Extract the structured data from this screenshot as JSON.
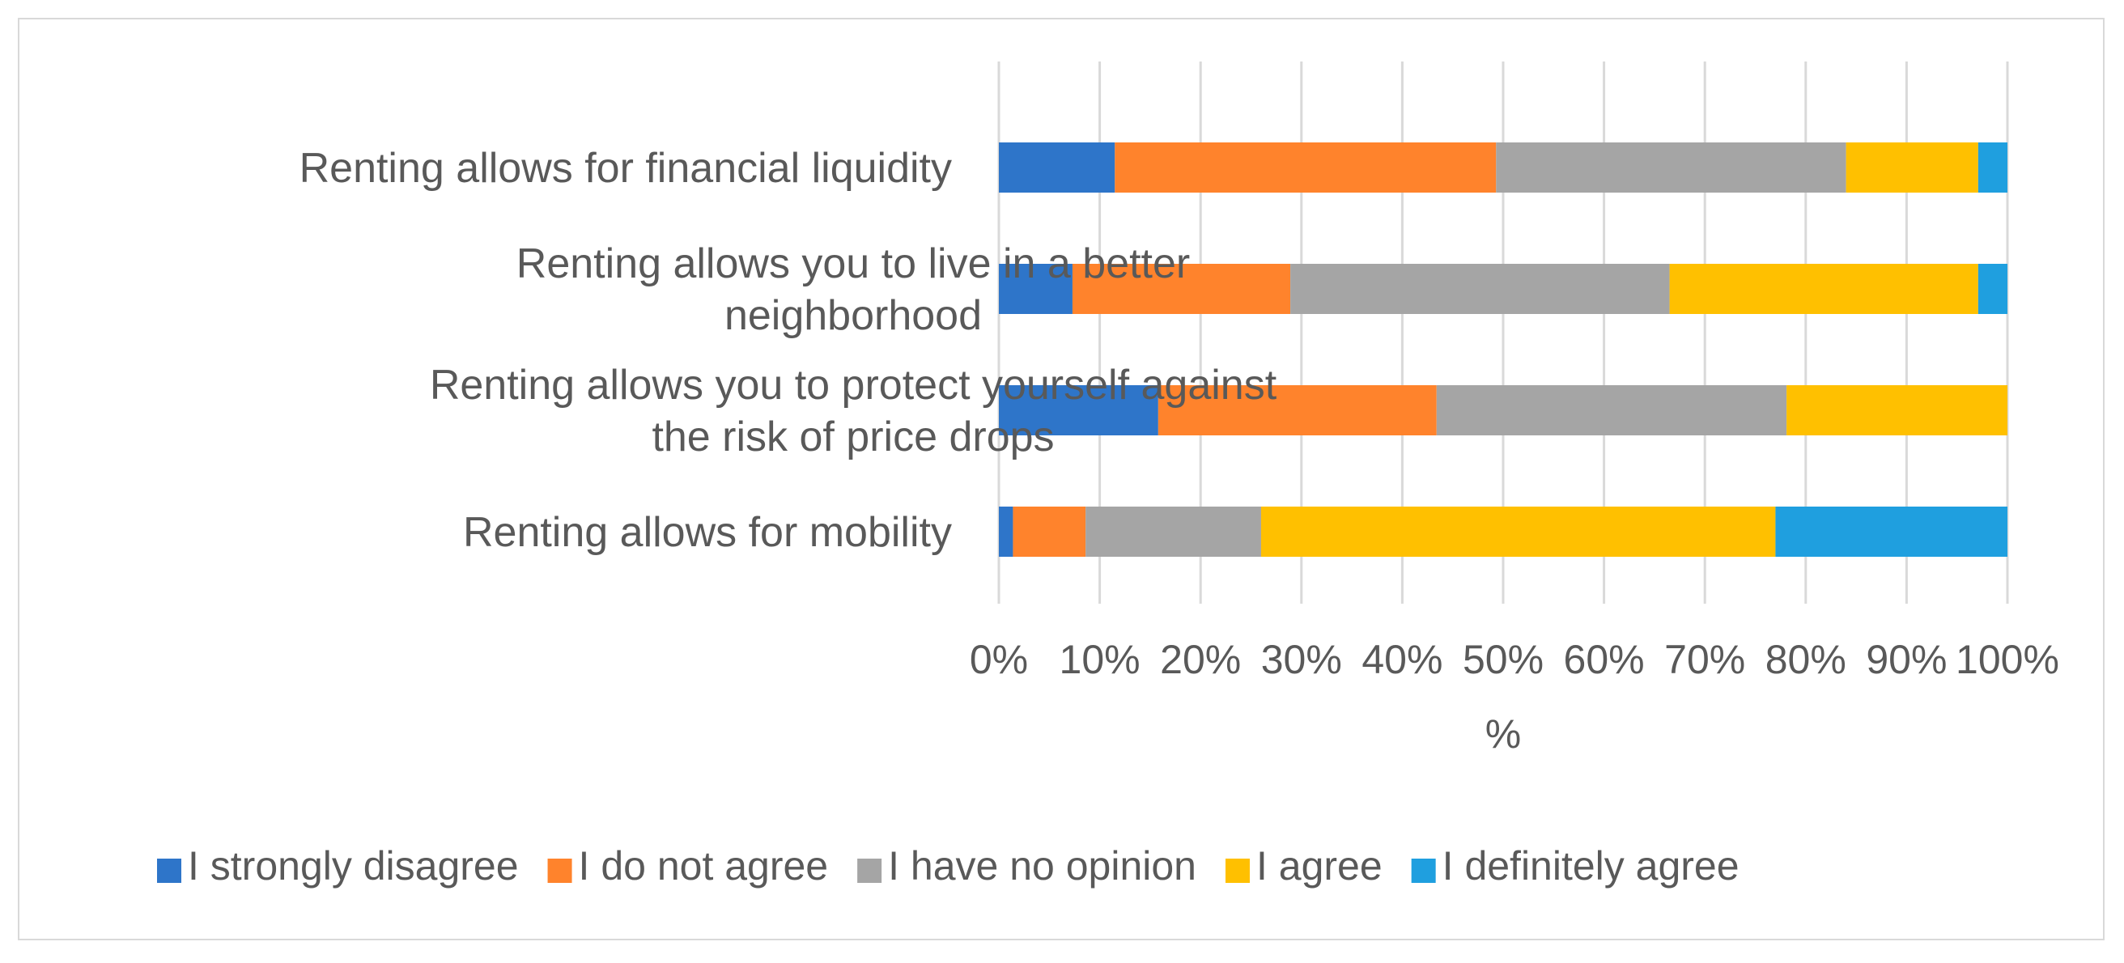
{
  "chart_data": {
    "type": "bar",
    "orientation": "horizontal",
    "stacked": true,
    "percent_stacked": true,
    "title": "",
    "xlabel": "%",
    "ylabel": "",
    "xlim": [
      0,
      100
    ],
    "grid": true,
    "legend_position": "bottom",
    "categories": [
      [
        "Renting allows for financial liquidity"
      ],
      [
        "Renting allows you to live in a better",
        "neighborhood"
      ],
      [
        "Renting allows you to protect yourself against",
        "the risk of price drops"
      ],
      [
        "Renting allows for mobility"
      ]
    ],
    "x_ticks": [
      "0%",
      "10%",
      "20%",
      "30%",
      "40%",
      "50%",
      "60%",
      "70%",
      "80%",
      "90%",
      "100%"
    ],
    "series": [
      {
        "name": "I strongly disagree",
        "color": "#2E75C9",
        "values": [
          11.5,
          7.3,
          15.8,
          1.4
        ]
      },
      {
        "name": "I do not agree",
        "color": "#FF832C",
        "values": [
          37.8,
          21.6,
          27.6,
          7.2
        ]
      },
      {
        "name": "I have no opinion",
        "color": "#A5A5A5",
        "values": [
          34.7,
          37.6,
          34.7,
          17.4
        ]
      },
      {
        "name": "I agree",
        "color": "#FFC000",
        "values": [
          13.1,
          30.6,
          21.9,
          51.0
        ]
      },
      {
        "name": "I definitely agree",
        "color": "#1F9FDF",
        "values": [
          2.9,
          2.9,
          0.0,
          23.0
        ]
      }
    ]
  }
}
